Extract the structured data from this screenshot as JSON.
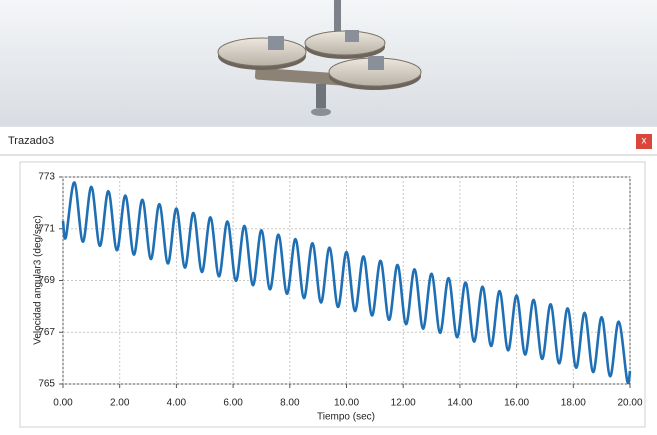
{
  "window": {
    "title": "Trazado3",
    "close": "x"
  },
  "chart_data": {
    "type": "line",
    "ylabel": "Velocidad angular3 (deg/sec)",
    "xlabel": "Tiempo (sec)",
    "color": "#1f6fb4",
    "grid": true,
    "xlim": [
      0,
      20
    ],
    "ylim": [
      765,
      773
    ],
    "xticks": [
      {
        "value": 0,
        "label": "0.00"
      },
      {
        "value": 2,
        "label": "2.00"
      },
      {
        "value": 4,
        "label": "4.00"
      },
      {
        "value": 6,
        "label": "6.00"
      },
      {
        "value": 8,
        "label": "8.00"
      },
      {
        "value": 10,
        "label": "10.00"
      },
      {
        "value": 12,
        "label": "12.00"
      },
      {
        "value": 14,
        "label": "14.00"
      },
      {
        "value": 16,
        "label": "16.00"
      },
      {
        "value": 18,
        "label": "18.00"
      },
      {
        "value": 20,
        "label": "20.00"
      }
    ],
    "yticks": [
      765,
      767,
      769,
      771,
      773
    ],
    "x": [
      0,
      0.1,
      0.4,
      0.7,
      1.0,
      1.3,
      1.6,
      1.9,
      2.2,
      2.5,
      2.8,
      3.1,
      3.4,
      3.7,
      4.0,
      4.3,
      4.6,
      4.9,
      5.2,
      5.5,
      5.8,
      6.1,
      6.4,
      6.7,
      7.0,
      7.3,
      7.6,
      7.9,
      8.2,
      8.5,
      8.8,
      9.1,
      9.4,
      9.7,
      10.0,
      10.3,
      10.6,
      10.9,
      11.2,
      11.5,
      11.8,
      12.1,
      12.4,
      12.7,
      13.0,
      13.3,
      13.6,
      13.9,
      14.2,
      14.5,
      14.8,
      15.1,
      15.4,
      15.7,
      16.0,
      16.3,
      16.6,
      16.9,
      17.2,
      17.5,
      17.8,
      18.1,
      18.4,
      18.7,
      19.0,
      19.3,
      19.6,
      19.9,
      20
    ],
    "values": [
      771.3,
      770.67,
      772.79,
      770.5,
      772.62,
      770.34,
      772.45,
      770.17,
      772.28,
      770.0,
      772.12,
      769.83,
      771.95,
      769.66,
      771.78,
      769.5,
      771.61,
      769.33,
      771.44,
      769.16,
      771.28,
      768.99,
      771.11,
      768.82,
      770.94,
      768.66,
      770.77,
      768.49,
      770.6,
      768.32,
      770.44,
      768.15,
      770.27,
      767.98,
      770.1,
      767.82,
      769.93,
      767.65,
      769.76,
      767.48,
      769.6,
      767.31,
      769.43,
      767.14,
      769.26,
      766.98,
      769.09,
      766.81,
      768.92,
      766.64,
      768.76,
      766.47,
      768.59,
      766.3,
      768.42,
      766.14,
      768.25,
      765.97,
      768.08,
      765.8,
      767.92,
      765.63,
      767.75,
      765.46,
      767.58,
      765.3,
      767.41,
      765.13,
      765.5
    ]
  }
}
